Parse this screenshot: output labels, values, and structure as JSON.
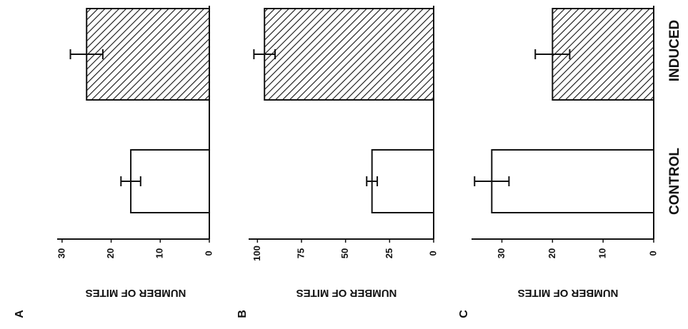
{
  "chart_data": [
    {
      "type": "bar",
      "panel": "A",
      "y_label": "NUMBER OF MITES",
      "values": [
        16,
        25
      ],
      "errors": [
        2,
        3.3
      ],
      "colors": [
        "#ffffff",
        "#ffffff"
      ],
      "hatch": [
        false,
        true
      ],
      "ylim": [
        0,
        31
      ],
      "yticks": [
        0,
        10,
        20,
        30
      ]
    },
    {
      "type": "bar",
      "panel": "B",
      "y_label": "NUMBER OF MITES",
      "values": [
        35,
        96
      ],
      "errors": [
        3,
        6
      ],
      "colors": [
        "#ffffff",
        "#ffffff"
      ],
      "hatch": [
        false,
        true
      ],
      "ylim": [
        0,
        105
      ],
      "yticks": [
        0,
        25,
        50,
        75,
        100
      ]
    },
    {
      "type": "bar",
      "panel": "C",
      "y_label": "NUMBER OF MITES",
      "categories": [
        "CONTROL",
        "INDUCED"
      ],
      "values": [
        32,
        20
      ],
      "errors": [
        3.4,
        3.4
      ],
      "colors": [
        "#ffffff",
        "#ffffff"
      ],
      "hatch": [
        false,
        true
      ],
      "ylim": [
        0,
        36
      ],
      "yticks": [
        0,
        10,
        20,
        30
      ]
    }
  ]
}
